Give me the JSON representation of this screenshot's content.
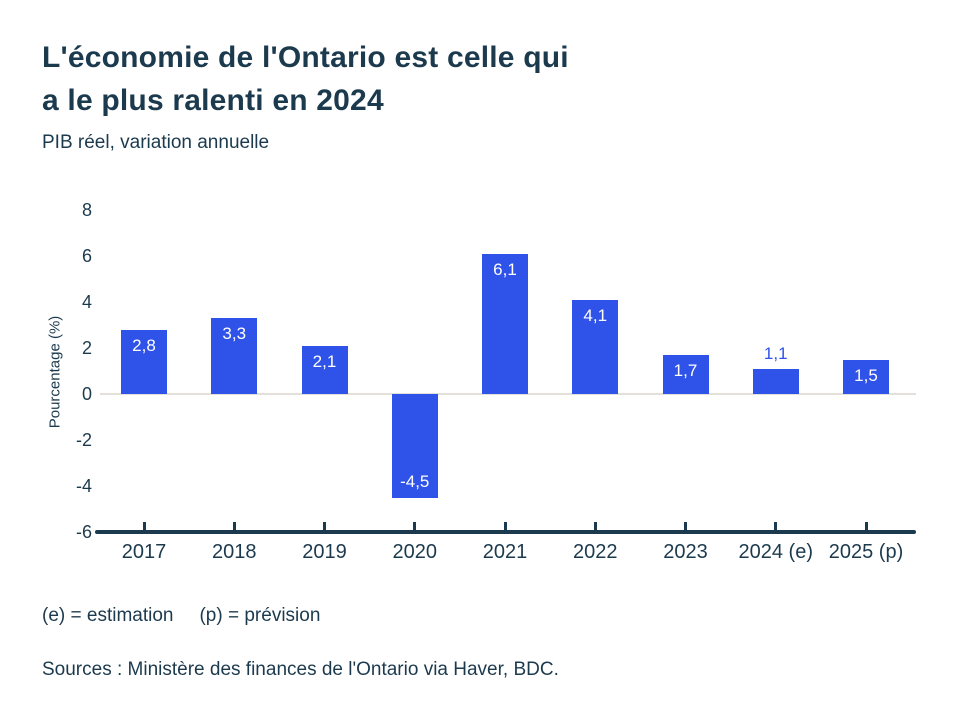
{
  "header": {
    "title_line1": "L'économie de l'Ontario est celle qui",
    "title_line2": "a le plus ralenti en 2024",
    "subtitle": "PIB réel, variation annuelle"
  },
  "chart_data": {
    "type": "bar",
    "title": "L'économie de l'Ontario est celle qui a le plus ralenti en 2024",
    "subtitle": "PIB réel, variation annuelle",
    "categories": [
      "2017",
      "2018",
      "2019",
      "2020",
      "2021",
      "2022",
      "2023",
      "2024 (e)",
      "2025 (p)"
    ],
    "values": [
      2.8,
      3.3,
      2.1,
      -4.5,
      6.1,
      4.1,
      1.7,
      1.1,
      1.5
    ],
    "value_labels": [
      "2,8",
      "3,3",
      "2,1",
      "-4,5",
      "6,1",
      "4,1",
      "1,7",
      "1,1",
      "1,5"
    ],
    "xlabel": "",
    "ylabel": "Pourcentage (%)",
    "ylim": [
      -6,
      8
    ],
    "yticks": [
      8,
      6,
      4,
      2,
      0,
      -2,
      -4,
      -6
    ],
    "ytick_labels": [
      "8",
      "6",
      "4",
      "2",
      "0",
      "-2",
      "-4",
      "-6"
    ],
    "grid": false,
    "zero_line": true,
    "legend": null,
    "colors": {
      "bar": "#2f53e8",
      "axis": "#1c3a4e",
      "zero_line": "#e3e0da",
      "label_inside": "#ffffff",
      "label_outside": "#2f53e8"
    }
  },
  "footer": {
    "note_e": "(e) = estimation",
    "note_p": "(p) = prévision",
    "sources": "Sources : Ministère des finances de l'Ontario via Haver, BDC."
  }
}
